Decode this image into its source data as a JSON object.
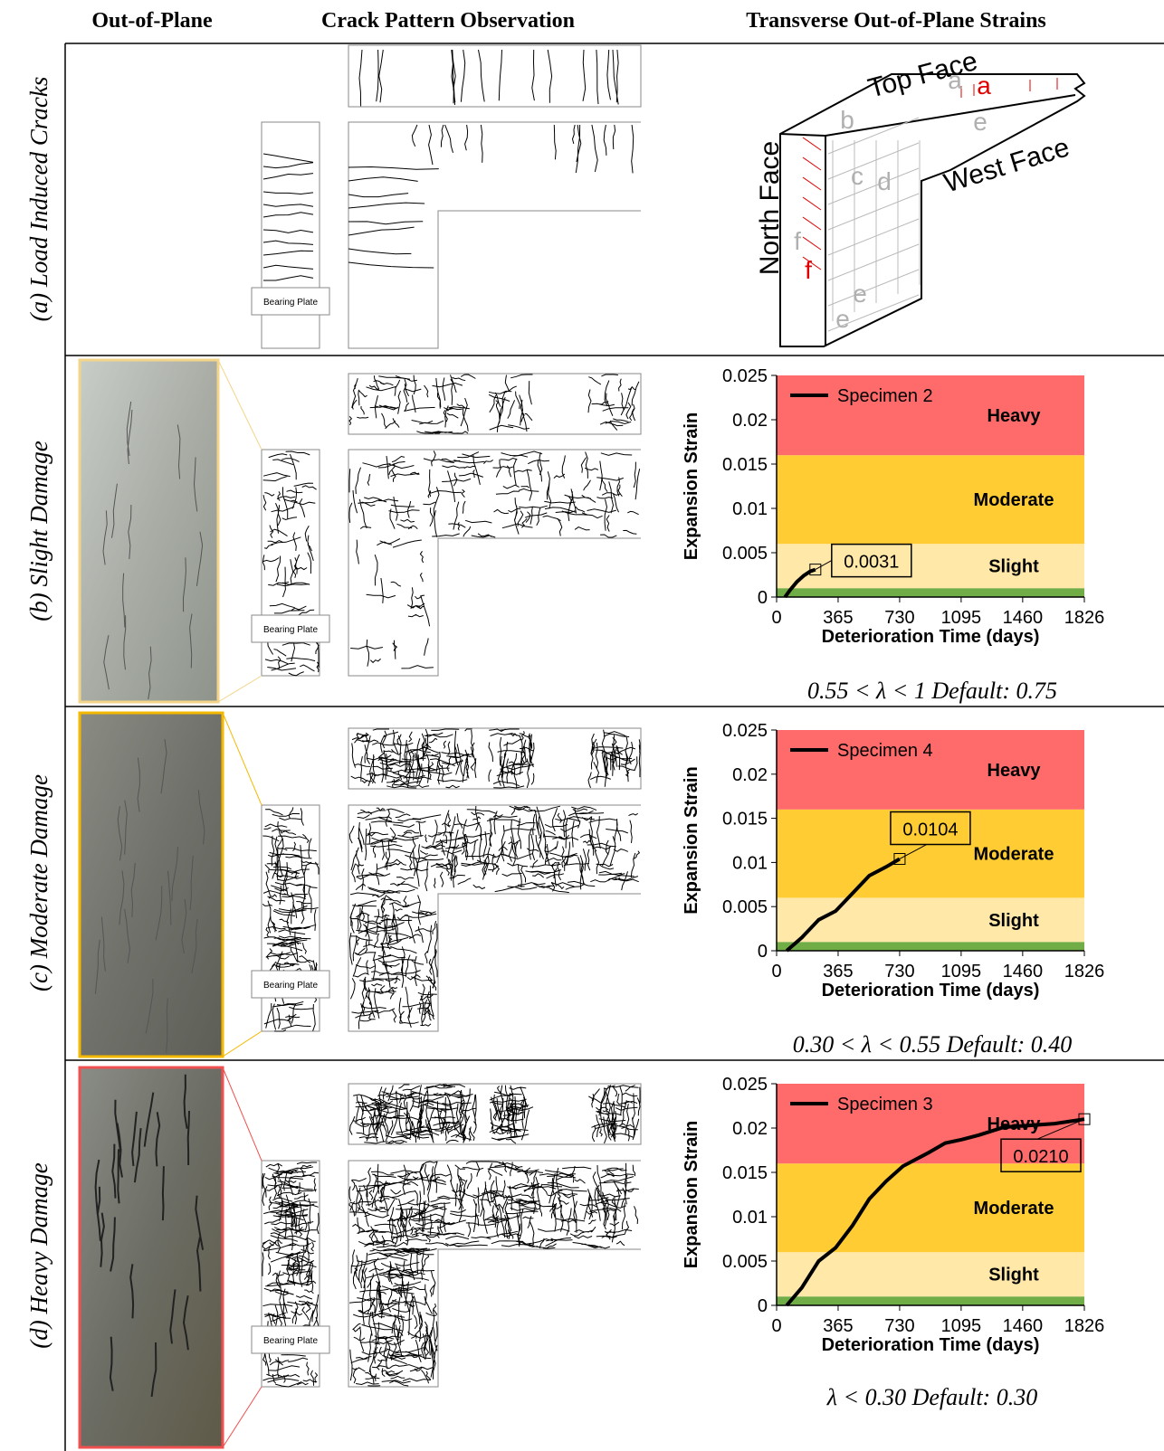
{
  "header": [
    "Out-of-Plane",
    "Crack Pattern Observation",
    "Transverse Out-of-Plane Strains"
  ],
  "rows": [
    {
      "label": "(a) Load Induced Cracks",
      "bearing_plate": "Bearing Plate"
    },
    {
      "label": "(b) Slight Damage",
      "bearing_plate": "Bearing Plate",
      "range": "0.55 < λ < 1 Default: 0.75"
    },
    {
      "label": "(c) Moderate Damage",
      "bearing_plate": "Bearing Plate",
      "range": "0.30 < λ < 0.55 Default: 0.40"
    },
    {
      "label": "(d) Heavy Damage",
      "bearing_plate": "Bearing Plate",
      "range": "λ < 0.30 Default: 0.30"
    }
  ],
  "diagram": {
    "top_face": "Top Face",
    "west_face": "West Face",
    "north_face": "North Face",
    "gauges": [
      {
        "label": "a",
        "color": "#b0b0b0"
      },
      {
        "label": "a",
        "color": "#e00000"
      },
      {
        "label": "b",
        "color": "#b0b0b0"
      },
      {
        "label": "c",
        "color": "#b0b0b0"
      },
      {
        "label": "d",
        "color": "#b0b0b0"
      },
      {
        "label": "e",
        "color": "#b0b0b0"
      },
      {
        "label": "e",
        "color": "#b0b0b0"
      },
      {
        "label": "e",
        "color": "#b0b0b0"
      },
      {
        "label": "f",
        "color": "#b0b0b0"
      },
      {
        "label": "f",
        "color": "#e00000"
      }
    ]
  },
  "chart_data": [
    {
      "type": "line",
      "ylabel": "Expansion Strain",
      "xlabel": "Deterioration Time (days)",
      "xlim": [
        0,
        1826
      ],
      "ylim": [
        0,
        0.025
      ],
      "xticks": [
        0,
        365,
        730,
        1095,
        1460,
        1826
      ],
      "yticks": [
        0,
        0.005,
        0.01,
        0.015,
        0.02,
        0.025
      ],
      "bands": [
        {
          "from": 0,
          "to": 0.001,
          "color": "#70ad47"
        },
        {
          "name": "Slight",
          "from": 0.001,
          "to": 0.006,
          "color": "#ffe8a8"
        },
        {
          "name": "Moderate",
          "from": 0.006,
          "to": 0.016,
          "color": "#ffcc33"
        },
        {
          "name": "Heavy",
          "from": 0.016,
          "to": 0.025,
          "color": "#ff6b6b"
        }
      ],
      "series": [
        {
          "name": "Specimen 2",
          "color": "#000000",
          "x": [
            50,
            80,
            120,
            160,
            200,
            230
          ],
          "values": [
            0,
            0.0008,
            0.0017,
            0.0024,
            0.0029,
            0.0031
          ]
        }
      ],
      "callout": {
        "x": 230,
        "value": 0.0031
      }
    },
    {
      "type": "line",
      "ylabel": "Expansion Strain",
      "xlabel": "Deterioration Time (days)",
      "xlim": [
        0,
        1826
      ],
      "ylim": [
        0,
        0.025
      ],
      "xticks": [
        0,
        365,
        730,
        1095,
        1460,
        1826
      ],
      "yticks": [
        0,
        0.005,
        0.01,
        0.015,
        0.02,
        0.025
      ],
      "bands": [
        {
          "from": 0,
          "to": 0.001,
          "color": "#70ad47"
        },
        {
          "name": "Slight",
          "from": 0.001,
          "to": 0.006,
          "color": "#ffe8a8"
        },
        {
          "name": "Moderate",
          "from": 0.006,
          "to": 0.016,
          "color": "#ffcc33"
        },
        {
          "name": "Heavy",
          "from": 0.016,
          "to": 0.025,
          "color": "#ff6b6b"
        }
      ],
      "series": [
        {
          "name": "Specimen 4",
          "color": "#000000",
          "x": [
            60,
            150,
            250,
            350,
            450,
            550,
            650,
            730
          ],
          "values": [
            0,
            0.0015,
            0.0035,
            0.0045,
            0.0065,
            0.0085,
            0.0095,
            0.0104
          ]
        }
      ],
      "callout": {
        "x": 730,
        "value": 0.0104
      }
    },
    {
      "type": "line",
      "ylabel": "Expansion Strain",
      "xlabel": "Deterioration Time (days)",
      "xlim": [
        0,
        1826
      ],
      "ylim": [
        0,
        0.025
      ],
      "xticks": [
        0,
        365,
        730,
        1095,
        1460,
        1826
      ],
      "yticks": [
        0,
        0.005,
        0.01,
        0.015,
        0.02,
        0.025
      ],
      "bands": [
        {
          "from": 0,
          "to": 0.001,
          "color": "#70ad47"
        },
        {
          "name": "Slight",
          "from": 0.001,
          "to": 0.006,
          "color": "#ffe8a8"
        },
        {
          "name": "Moderate",
          "from": 0.006,
          "to": 0.016,
          "color": "#ffcc33"
        },
        {
          "name": "Heavy",
          "from": 0.016,
          "to": 0.025,
          "color": "#ff6b6b"
        }
      ],
      "series": [
        {
          "name": "Specimen 3",
          "color": "#000000",
          "x": [
            60,
            150,
            250,
            350,
            450,
            550,
            650,
            750,
            900,
            1000,
            1100,
            1200,
            1350,
            1500,
            1650,
            1826
          ],
          "values": [
            0,
            0.002,
            0.005,
            0.0065,
            0.009,
            0.012,
            0.014,
            0.0157,
            0.0172,
            0.0183,
            0.0187,
            0.0192,
            0.0201,
            0.0203,
            0.0205,
            0.021
          ]
        }
      ],
      "callout": {
        "x": 1826,
        "value": 0.021,
        "label": "0.0210"
      }
    }
  ]
}
